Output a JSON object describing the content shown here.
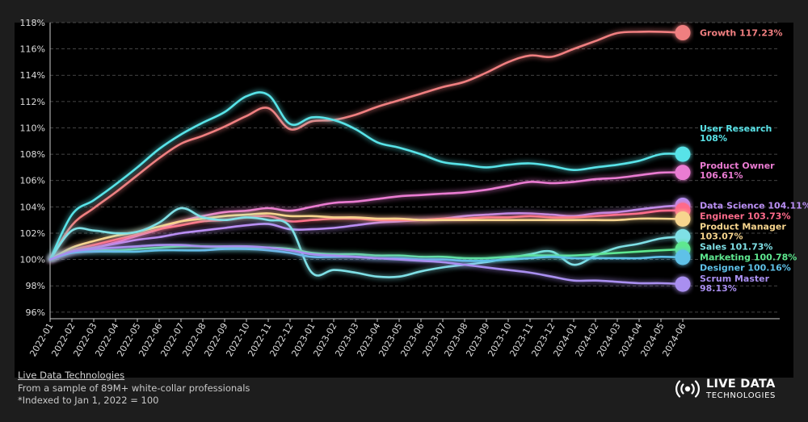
{
  "chart_data": {
    "type": "line",
    "title": "",
    "xlabel": "",
    "ylabel": "",
    "ylim": [
      95.5,
      118
    ],
    "yticks": [
      96,
      98,
      100,
      102,
      104,
      106,
      108,
      110,
      112,
      114,
      116,
      118
    ],
    "ytick_labels": [
      "96%",
      "98%",
      "100%",
      "102%",
      "104%",
      "106%",
      "108%",
      "110%",
      "112%",
      "114%",
      "116%",
      "118%"
    ],
    "grid": "horizontal dashed",
    "x": [
      "2022-01",
      "2022-02",
      "2022-03",
      "2022-04",
      "2022-05",
      "2022-06",
      "2022-07",
      "2022-08",
      "2022-09",
      "2022-10",
      "2022-11",
      "2022-12",
      "2023-01",
      "2023-02",
      "2023-03",
      "2023-04",
      "2023-05",
      "2023-06",
      "2023-07",
      "2023-08",
      "2023-09",
      "2023-10",
      "2023-11",
      "2023-12",
      "2024-01",
      "2024-02",
      "2024-03",
      "2024-04",
      "2024-05",
      "2024-06"
    ],
    "series": [
      {
        "name": "Growth",
        "end_label": "Growth 117.23%",
        "color": "#f07f80",
        "values": [
          100,
          102.6,
          103.9,
          105.1,
          106.4,
          107.7,
          108.8,
          109.4,
          110.1,
          110.9,
          111.5,
          109.9,
          110.5,
          110.6,
          111.0,
          111.6,
          112.1,
          112.6,
          113.1,
          113.5,
          114.2,
          115.0,
          115.5,
          115.4,
          116.0,
          116.6,
          117.2,
          117.3,
          117.3,
          117.23
        ]
      },
      {
        "name": "User Research",
        "end_label": "User Research 108%",
        "color": "#59e3e8",
        "values": [
          100,
          103.4,
          104.5,
          105.7,
          107.0,
          108.4,
          109.5,
          110.4,
          111.2,
          112.4,
          112.5,
          110.3,
          110.8,
          110.6,
          109.9,
          108.9,
          108.5,
          108.0,
          107.4,
          107.2,
          107.0,
          107.2,
          107.3,
          107.1,
          106.8,
          107.0,
          107.2,
          107.5,
          108.0,
          108.0
        ]
      },
      {
        "name": "Product Owner",
        "end_label": "Product Owner 106.61%",
        "color": "#ea7bd2",
        "values": [
          100,
          100.6,
          100.9,
          101.3,
          101.8,
          102.3,
          102.9,
          103.3,
          103.6,
          103.7,
          103.9,
          103.7,
          104.0,
          104.3,
          104.4,
          104.6,
          104.8,
          104.9,
          105.0,
          105.1,
          105.3,
          105.6,
          105.9,
          105.8,
          105.9,
          106.1,
          106.2,
          106.4,
          106.6,
          106.61
        ]
      },
      {
        "name": "Data Science",
        "end_label": "Data Science 104.11%",
        "color": "#b98ef3",
        "values": [
          100,
          100.6,
          100.9,
          101.2,
          101.5,
          101.7,
          102.0,
          102.2,
          102.4,
          102.6,
          102.7,
          102.3,
          102.3,
          102.4,
          102.6,
          102.8,
          102.9,
          103.0,
          103.1,
          103.3,
          103.4,
          103.5,
          103.5,
          103.4,
          103.3,
          103.5,
          103.6,
          103.8,
          104.0,
          104.11
        ]
      },
      {
        "name": "Engineer",
        "end_label": "Engineer 103.73%",
        "color": "#ff6b8b",
        "values": [
          100,
          100.7,
          101.1,
          101.5,
          101.9,
          102.3,
          102.6,
          102.9,
          103.0,
          103.2,
          103.3,
          102.9,
          103.0,
          103.1,
          103.1,
          103.0,
          103.0,
          103.0,
          103.1,
          103.1,
          103.2,
          103.2,
          103.3,
          103.2,
          103.2,
          103.3,
          103.4,
          103.5,
          103.7,
          103.73
        ]
      },
      {
        "name": "Product Manager",
        "end_label": "Product Manager 103.07%",
        "color": "#f7d58e",
        "values": [
          100,
          100.9,
          101.4,
          101.8,
          102.1,
          102.5,
          102.9,
          103.1,
          103.3,
          103.4,
          103.5,
          103.3,
          103.3,
          103.2,
          103.2,
          103.1,
          103.1,
          103.0,
          103.0,
          103.0,
          103.0,
          103.0,
          103.0,
          103.0,
          103.0,
          103.0,
          103.0,
          103.1,
          103.1,
          103.07
        ]
      },
      {
        "name": "Sales",
        "end_label": "Sales 101.73%",
        "color": "#7fe0e6",
        "values": [
          100,
          102.2,
          102.2,
          102.0,
          102.1,
          102.8,
          103.9,
          103.2,
          103.0,
          103.2,
          103.0,
          102.5,
          99.0,
          99.2,
          99.0,
          98.7,
          98.7,
          99.1,
          99.4,
          99.6,
          99.8,
          100.1,
          100.4,
          100.6,
          99.6,
          100.3,
          100.9,
          101.2,
          101.6,
          101.73
        ]
      },
      {
        "name": "Marketing",
        "end_label": "Marketing 100.78%",
        "color": "#5ee88f",
        "values": [
          100,
          100.6,
          100.7,
          100.7,
          100.8,
          100.9,
          101.0,
          101.0,
          100.9,
          100.9,
          100.9,
          100.8,
          100.5,
          100.4,
          100.4,
          100.3,
          100.3,
          100.2,
          100.2,
          100.1,
          100.1,
          100.2,
          100.3,
          100.3,
          100.3,
          100.4,
          100.5,
          100.6,
          100.7,
          100.78
        ]
      },
      {
        "name": "Designer",
        "end_label": "Designer 100.16%",
        "color": "#5ec1e8",
        "values": [
          100,
          100.5,
          100.6,
          100.6,
          100.6,
          100.7,
          100.7,
          100.7,
          100.8,
          100.8,
          100.7,
          100.5,
          100.2,
          100.2,
          100.2,
          100.1,
          100.1,
          100.0,
          100.0,
          99.9,
          99.9,
          100.0,
          100.1,
          100.2,
          100.1,
          100.1,
          100.1,
          100.1,
          100.2,
          100.16
        ]
      },
      {
        "name": "Scrum Master",
        "end_label": "Scrum Master 98.13%",
        "color": "#a98ff0",
        "values": [
          100,
          100.6,
          100.8,
          100.9,
          101.0,
          101.1,
          101.1,
          101.0,
          101.0,
          101.0,
          100.9,
          100.7,
          100.4,
          100.3,
          100.2,
          100.1,
          100.0,
          99.9,
          99.8,
          99.6,
          99.4,
          99.2,
          99.0,
          98.7,
          98.4,
          98.4,
          98.3,
          98.2,
          98.2,
          98.13
        ]
      }
    ]
  },
  "footer": {
    "source": "Live Data Technologies",
    "sample": "From a sample of 89M+ white-collar professionals",
    "note": "*Indexed to Jan 1, 2022 = 100"
  },
  "logo": {
    "line1": "LIVE DATA",
    "line2": "TECHNOLOGIES"
  }
}
